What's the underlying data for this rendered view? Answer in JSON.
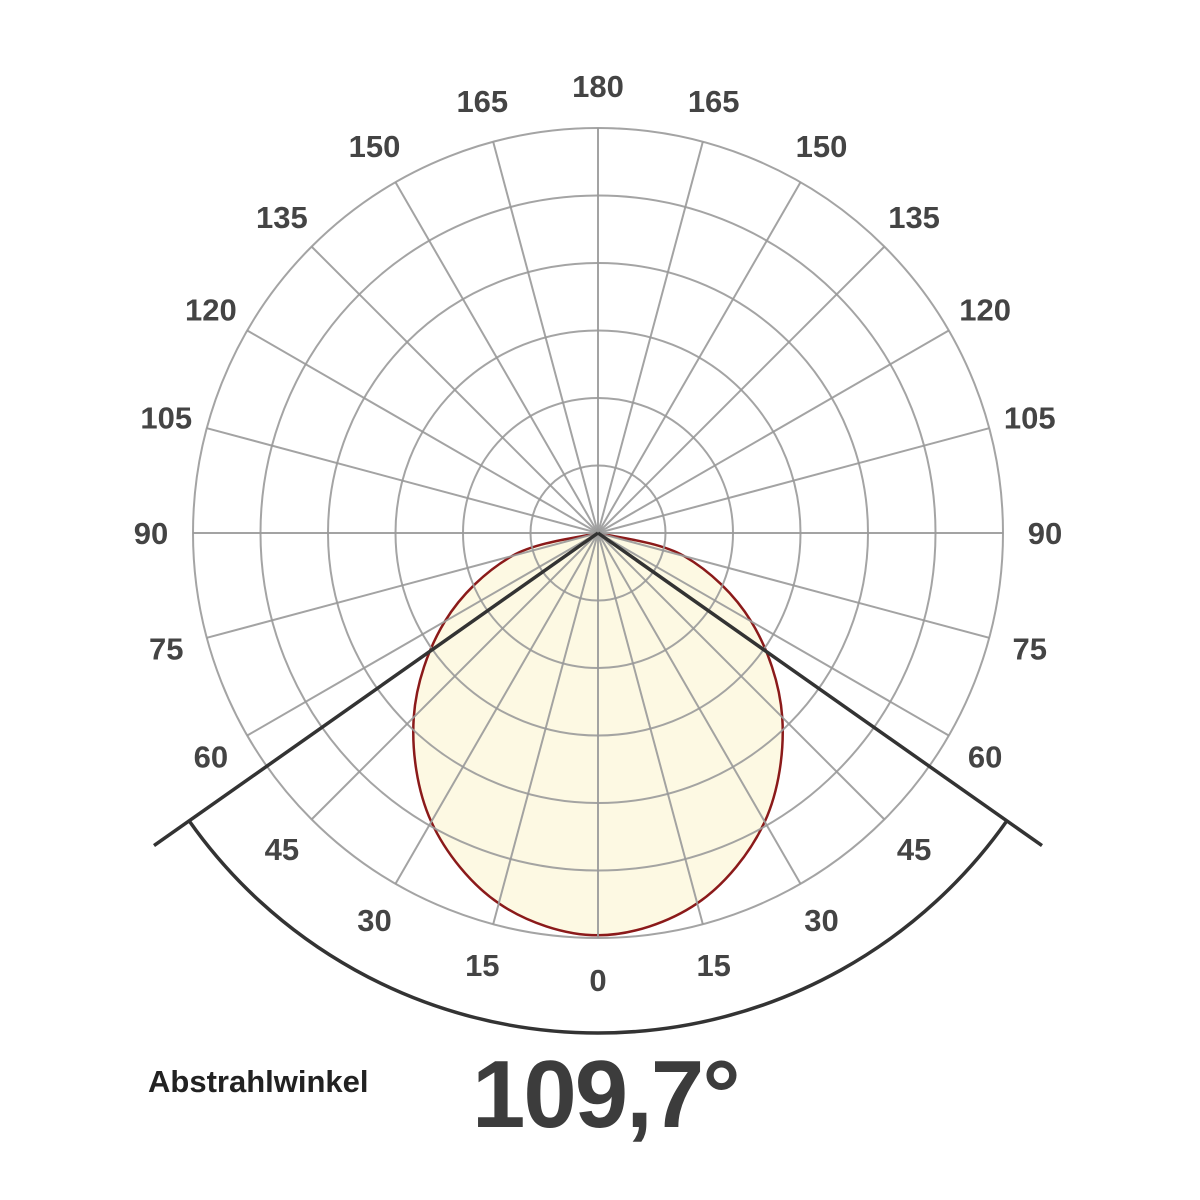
{
  "chart_data": {
    "type": "polar",
    "angle_ticks": [
      "0",
      "15",
      "30",
      "45",
      "60",
      "75",
      "90",
      "105",
      "120",
      "135",
      "150",
      "165",
      "180"
    ],
    "angles_deg": [
      0,
      15,
      30,
      45,
      60,
      75,
      90
    ],
    "values": [
      5.96,
      5.68,
      4.94,
      3.86,
      2.62,
      1.32,
      0
    ],
    "symmetric": true,
    "rings": 6,
    "grid": true,
    "beam_angle_deg": 109.7,
    "colors": {
      "grid": "#9a9a9a",
      "curve": "#8b1a1a",
      "fill": "#fdf9e3",
      "beam": "#333333",
      "labels": "#444444"
    }
  },
  "beam": {
    "label": "Abstrahlwinkel",
    "value": "109,7°"
  }
}
